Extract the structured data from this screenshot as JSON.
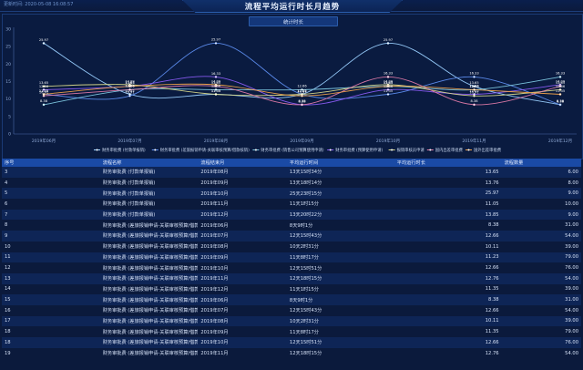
{
  "header": {
    "update_time": "更新时间: 2020-05-08 16:08:57",
    "title": "流程平均运行时长月趋势"
  },
  "chart": {
    "title": "统计时长"
  },
  "colors": {
    "bg": "#0b1a3c",
    "series": [
      "#9ad0ff",
      "#5e8ef0",
      "#7ec8e0",
      "#8b5cf6",
      "#d8d88a",
      "#e07aa8",
      "#f0a24a"
    ]
  },
  "chart_data": {
    "type": "line",
    "x": [
      "2019年06月",
      "2019年07月",
      "2019年08月",
      "2019年09月",
      "2019年10月",
      "2019年11月",
      "2019年12月"
    ],
    "ylim": [
      0,
      30
    ],
    "yticks": [
      0,
      5,
      10,
      15,
      20,
      25,
      30
    ],
    "grid": false,
    "legend": "bottom",
    "series": [
      {
        "name": "财务审批费 (付款单报销)",
        "values": [
          25.97,
          11.35,
          11.35,
          11.35,
          25.97,
          13.65,
          8.38
        ]
      },
      {
        "name": "财务审批费 (差旅报销申请-关联审核预算/借款核销)",
        "values": [
          11.35,
          10.91,
          25.97,
          11.35,
          11.35,
          16.33,
          8.38
        ]
      },
      {
        "name": "财务审批费 (销售公司预算使用申请)",
        "values": [
          8.38,
          12.66,
          12.66,
          12.66,
          13.65,
          12.66,
          16.33
        ]
      },
      {
        "name": "财务审批费 (预算使用申请)",
        "values": [
          12.66,
          13.65,
          16.33,
          8.38,
          12.66,
          11.35,
          14.09
        ]
      },
      {
        "name": "报销审核员申请",
        "values": [
          13.65,
          14.09,
          11.35,
          11.35,
          14.09,
          10.91,
          12.66
        ]
      },
      {
        "name": "国内出差审批费",
        "values": [
          10.91,
          12.66,
          13.65,
          8.38,
          16.33,
          8.38,
          13.65
        ]
      },
      {
        "name": "国外出差审批费",
        "values": [
          11.35,
          13.65,
          14.09,
          10.91,
          13.65,
          12.66,
          11.35
        ]
      }
    ],
    "value_labels": [
      "25.97",
      "14.09",
      "16.33",
      "13.65",
      "12.66",
      "11.35",
      "10.91",
      "8.38"
    ]
  },
  "table": {
    "headers": [
      "序号",
      "流程名称",
      "流程结束月",
      "平均运行时间",
      "平均运行时长",
      "流程数量"
    ],
    "rows": [
      [
        "3",
        "财务审批费 (付款单报销)",
        "2019年08月",
        "13天15时34分",
        "13.65",
        "6.00"
      ],
      [
        "4",
        "财务审批费 (付款单报销)",
        "2019年09月",
        "13天18时14分",
        "13.76",
        "8.00"
      ],
      [
        "5",
        "财务审批费 (付款单报销)",
        "2019年10月",
        "25天23时15分",
        "25.97",
        "9.00"
      ],
      [
        "6",
        "财务审批费 (付款单报销)",
        "2019年11月",
        "11天1时15分",
        "11.05",
        "10.00"
      ],
      [
        "7",
        "财务审批费 (付款单报销)",
        "2019年12月",
        "13天20时22分",
        "13.85",
        "9.00"
      ],
      [
        "8",
        "财务审批费 (差旅报销申请-关联审核预算/借款核销)",
        "2019年06月",
        "8天9时1分",
        "8.38",
        "31.00"
      ],
      [
        "9",
        "财务审批费 (差旅报销申请-关联审核预算/借款核销)",
        "2019年07月",
        "12天15时43分",
        "12.66",
        "54.00"
      ],
      [
        "10",
        "财务审批费 (差旅报销申请-关联审核预算/借款核销)",
        "2019年08月",
        "10天2时31分",
        "10.11",
        "39.00"
      ],
      [
        "11",
        "财务审批费 (差旅报销申请-关联审核预算/借款核销)",
        "2019年09月",
        "11天8时17分",
        "11.23",
        "79.00"
      ],
      [
        "12",
        "财务审批费 (差旅报销申请-关联审核预算/借款核销)",
        "2019年10月",
        "12天15时51分",
        "12.66",
        "76.00"
      ],
      [
        "13",
        "财务审批费 (差旅报销申请-关联审核预算/借款核销)",
        "2019年11月",
        "12天18时15分",
        "12.76",
        "54.00"
      ],
      [
        "14",
        "财务审批费 (差旅报销申请-关联审核预算/借款核销)",
        "2019年12月",
        "11天1时15分",
        "11.35",
        "39.00"
      ],
      [
        "15",
        "财务审批费 (差旅报销申请-关联审核预算/借款核销)",
        "2019年06月",
        "8天9时1分",
        "8.38",
        "31.00"
      ],
      [
        "16",
        "财务审批费 (差旅报销申请-关联审核预算/借款核销)",
        "2019年07月",
        "12天15时43分",
        "12.66",
        "54.00"
      ],
      [
        "17",
        "财务审批费 (差旅报销申请-关联审核预算/借款核销)",
        "2019年08月",
        "10天2时31分",
        "10.11",
        "39.00"
      ],
      [
        "18",
        "财务审批费 (差旅报销申请-关联审核预算/借款核销)",
        "2019年09月",
        "11天8时17分",
        "11.35",
        "79.00"
      ],
      [
        "18",
        "财务审批费 (差旅报销申请-关联审核预算/借款核销)",
        "2019年10月",
        "12天15时51分",
        "12.66",
        "76.00"
      ],
      [
        "19",
        "财务审批费 (差旅报销申请-关联审核预算/借款核销)",
        "2019年11月",
        "12天18时15分",
        "12.76",
        "54.00"
      ]
    ]
  }
}
